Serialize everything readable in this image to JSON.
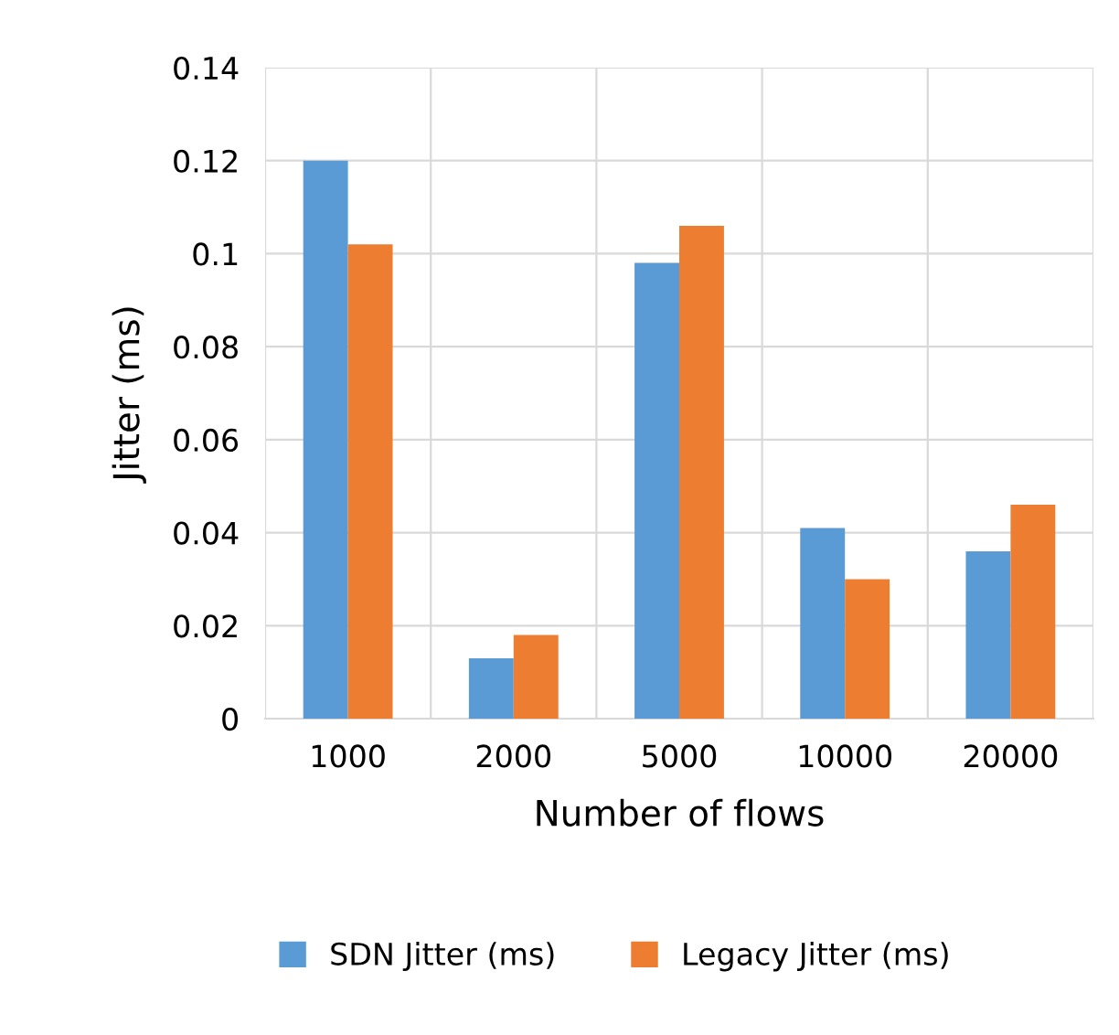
{
  "chart_data": {
    "type": "bar",
    "xlabel": "Number of flows",
    "ylabel": "Jitter (ms)",
    "categories": [
      "1000",
      "2000",
      "5000",
      "10000",
      "20000"
    ],
    "series": [
      {
        "name": "SDN Jitter (ms)",
        "color": "#5b9bd5",
        "values": [
          0.12,
          0.013,
          0.098,
          0.041,
          0.036
        ]
      },
      {
        "name": "Legacy Jitter (ms)",
        "color": "#ed7d31",
        "values": [
          0.102,
          0.018,
          0.106,
          0.03,
          0.046
        ]
      }
    ],
    "ylim": [
      0,
      0.14
    ],
    "yticks": [
      0,
      0.02,
      0.04,
      0.06,
      0.08,
      0.1,
      0.12,
      0.14
    ],
    "grid": true,
    "legend": "bottom"
  }
}
